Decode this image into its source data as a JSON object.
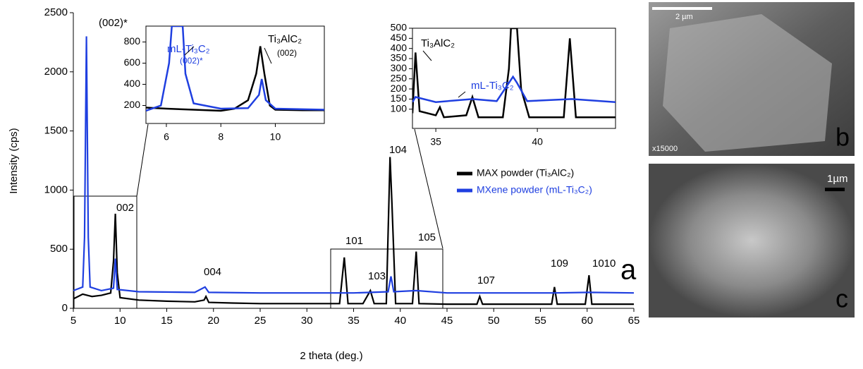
{
  "chart_data": [
    {
      "type": "line",
      "x_label": "2 theta (deg.)",
      "y_label": "Intensity (cps)",
      "xlim": [
        5,
        65
      ],
      "ylim": [
        0,
        2500
      ],
      "xticks": [
        5,
        10,
        15,
        20,
        25,
        30,
        35,
        40,
        45,
        50,
        55,
        60,
        65
      ],
      "yticks": [
        0,
        500,
        1000,
        1500,
        2000,
        2500
      ],
      "annotations": [
        "(002)*",
        "002",
        "004",
        "101",
        "103",
        "104",
        "105",
        "107",
        "109",
        "1010",
        "a"
      ],
      "series": [
        {
          "name": "MAX powder (Ti₃AlC₂)",
          "color": "#000000",
          "x": [
            5,
            6,
            7,
            8,
            9,
            9.3,
            9.5,
            9.7,
            10,
            12,
            15,
            18,
            19,
            19.2,
            19.5,
            22,
            25,
            30,
            33.5,
            34,
            34.4,
            36,
            36.8,
            37.2,
            38.5,
            38.9,
            39.1,
            39.5,
            41.3,
            41.7,
            42,
            45,
            48.2,
            48.5,
            48.8,
            52,
            56.2,
            56.5,
            56.8,
            59.8,
            60.2,
            60.5,
            63,
            65
          ],
          "values": [
            80,
            120,
            100,
            110,
            130,
            400,
            800,
            300,
            90,
            70,
            60,
            55,
            70,
            100,
            50,
            45,
            40,
            40,
            40,
            430,
            40,
            40,
            150,
            40,
            40,
            1280,
            900,
            40,
            40,
            480,
            40,
            35,
            35,
            100,
            35,
            35,
            35,
            180,
            35,
            35,
            280,
            35,
            35,
            35
          ]
        },
        {
          "name": "MXene powder (mL-Ti₃C₂)",
          "color": "#1f3fe0",
          "x": [
            5,
            6,
            6.2,
            6.4,
            6.6,
            6.8,
            8,
            9.3,
            9.5,
            9.7,
            12,
            18,
            19.1,
            19.5,
            25,
            30,
            35,
            38.7,
            39,
            39.3,
            41.7,
            45,
            56.5,
            60.2,
            65
          ],
          "values": [
            150,
            180,
            600,
            2300,
            600,
            180,
            150,
            170,
            420,
            160,
            140,
            135,
            180,
            135,
            130,
            130,
            130,
            140,
            270,
            140,
            150,
            130,
            130,
            135,
            130
          ]
        }
      ]
    },
    {
      "type": "line",
      "xlim": [
        5.25,
        11.8
      ],
      "ylim": [
        30,
        950
      ],
      "xticks": [
        6,
        8,
        10
      ],
      "yticks": [
        200,
        400,
        600,
        800
      ],
      "annotations": [
        "mL-Ti₃C₂",
        "(002)*",
        "Ti₃AlC₂",
        "(002)"
      ],
      "series": [
        {
          "color": "#000000",
          "x": [
            5.25,
            6,
            7,
            8,
            8.5,
            9,
            9.3,
            9.45,
            9.6,
            9.8,
            10,
            11,
            11.8
          ],
          "values": [
            180,
            170,
            160,
            150,
            170,
            250,
            500,
            760,
            500,
            200,
            160,
            155,
            155
          ]
        },
        {
          "color": "#1f3fe0",
          "x": [
            5.25,
            5.8,
            6.1,
            6.2,
            6.6,
            6.7,
            7,
            8,
            9,
            9.4,
            9.5,
            9.65,
            10,
            11.8
          ],
          "values": [
            150,
            200,
            600,
            950,
            950,
            500,
            220,
            170,
            175,
            300,
            450,
            250,
            170,
            160
          ]
        }
      ]
    },
    {
      "type": "line",
      "xlim": [
        33.85,
        43.85
      ],
      "ylim": [
        5,
        500
      ],
      "xticks": [
        35,
        40
      ],
      "yticks": [
        100,
        150,
        200,
        250,
        300,
        350,
        400,
        450,
        500
      ],
      "annotations": [
        "Ti₃AlC₂",
        "mL-Ti₃C₂"
      ],
      "series": [
        {
          "color": "#000000",
          "x": [
            33.85,
            34,
            34.2,
            35,
            35.2,
            35.4,
            36.5,
            36.8,
            37.1,
            38.3,
            38.6,
            38.7,
            39,
            39.2,
            39.6,
            41.3,
            41.6,
            41.9,
            43.85
          ],
          "values": [
            80,
            380,
            90,
            70,
            110,
            60,
            70,
            160,
            60,
            60,
            300,
            500,
            500,
            200,
            60,
            60,
            450,
            60,
            60
          ]
        },
        {
          "color": "#1f3fe0",
          "x": [
            33.85,
            34,
            35,
            36.8,
            38,
            38.8,
            39,
            39.5,
            41.7,
            43.85
          ],
          "values": [
            135,
            160,
            135,
            150,
            140,
            260,
            230,
            140,
            150,
            135
          ]
        }
      ]
    }
  ],
  "images": {
    "b": {
      "scale": "2 µm",
      "magnification": "x15000",
      "label": "b"
    },
    "c": {
      "scale": "1µm",
      "label": "c"
    }
  }
}
